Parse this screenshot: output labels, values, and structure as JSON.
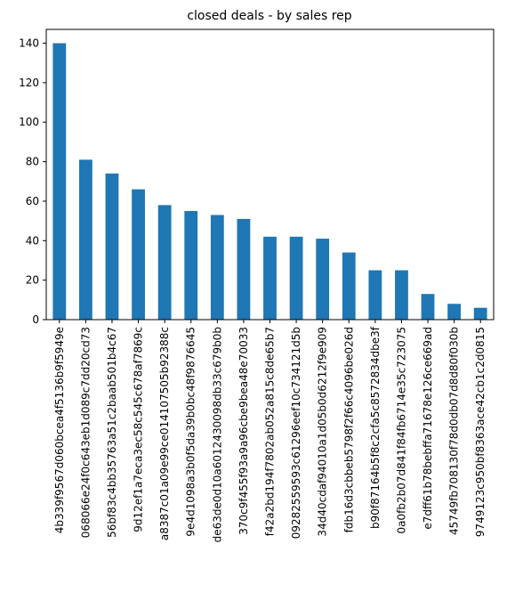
{
  "chart_data": {
    "type": "bar",
    "title": "closed deals - by sales rep",
    "categories": [
      "4b339f9567d060bcea4f5136b9f5949e",
      "068066e24f0c643eb1d089c7dd20cd73",
      "56bf83c4bb35763a51c2baab501b4c67",
      "9d12ef1a7eca3ec58c545c678af7869c",
      "a8387c01a09e99ce014107505b92388c",
      "9e4d1098a3b0f5da39b0bc48f9876645",
      "de63de0d10a6012430098db33c679b0b",
      "370c9f455f93a9a96cbe9bea48e70033",
      "f42a2bd194f7802ab052a815c8de65b7",
      "09282559593c61296eef10c734121d5b",
      "34d40cdaf94010a1d05b0d6212f9e909",
      "fdb16d3cbbeb5798f2f66c4096be026d",
      "b90f87164b5f8c2cfa5c8572834dbe3f",
      "0a0fb2b07d841f84fb6714e35c723075",
      "e7dff61b78bebffa71678e126ce669ad",
      "45749fb708130f78d0db07d8d80f030b",
      "9749123c950bf8363ace42cb1c2d0815"
    ],
    "values": [
      140,
      81,
      74,
      66,
      58,
      55,
      53,
      51,
      42,
      42,
      41,
      34,
      25,
      25,
      13,
      8,
      6
    ],
    "color": "#1f77b4",
    "ylim": [
      0,
      147
    ],
    "yticks": [
      0,
      20,
      40,
      60,
      80,
      100,
      120,
      140
    ],
    "grid": false
  }
}
